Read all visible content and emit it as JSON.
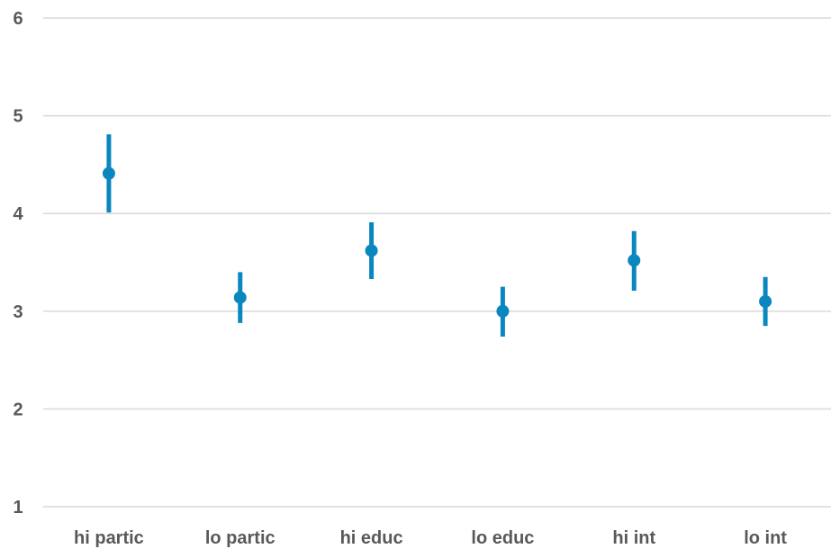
{
  "chart_data": {
    "type": "scatter",
    "title": "",
    "xlabel": "",
    "ylabel": "",
    "categories": [
      "hi partic",
      "lo partic",
      "hi educ",
      "lo educ",
      "hi int",
      "lo int"
    ],
    "series": [
      {
        "values": [
          4.41,
          3.14,
          3.62,
          3.0,
          3.52,
          3.1
        ],
        "error_low": [
          4.01,
          2.88,
          3.33,
          2.74,
          3.21,
          2.85
        ],
        "error_high": [
          4.81,
          3.4,
          3.91,
          3.25,
          3.82,
          3.35
        ],
        "color": "#0a87bf"
      }
    ],
    "ylim": [
      1,
      6
    ],
    "yticks": [
      1,
      2,
      3,
      4,
      5,
      6
    ],
    "grid": true,
    "legend": "none"
  }
}
